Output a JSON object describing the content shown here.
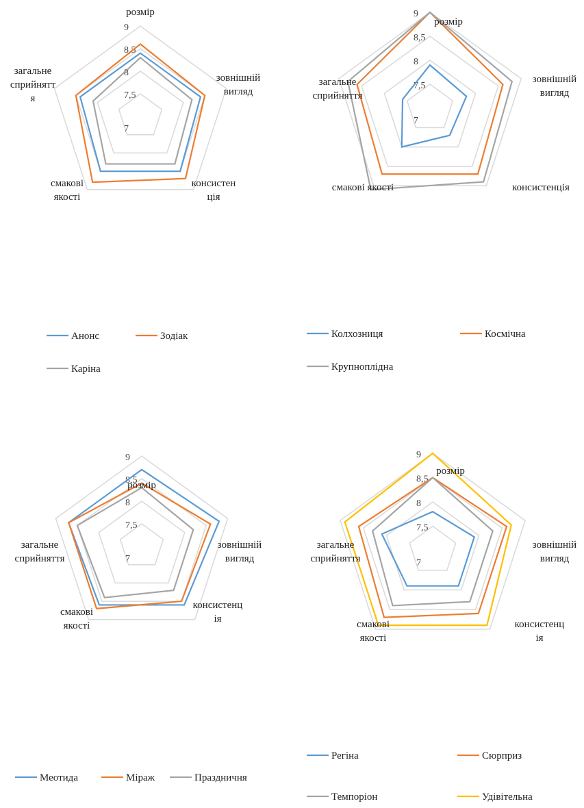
{
  "chart_data": [
    {
      "type": "radar",
      "axes": [
        "розмір",
        "зовнішній вигляд",
        "консистенція",
        "смакові якості",
        "загальне сприйняття"
      ],
      "axis_labels": [
        [
          "розмір"
        ],
        [
          "зовнішній",
          "вигляд"
        ],
        [
          "консистен",
          "ція"
        ],
        [
          "смакові",
          "якості"
        ],
        [
          "загальне",
          "сприйнятт",
          "я"
        ]
      ],
      "ticks": [
        "7",
        "7,5",
        "8",
        "8,5",
        "9"
      ],
      "range": [
        7,
        9
      ],
      "grid": true,
      "legend_position": "bottom",
      "series": [
        {
          "name": "Анонс",
          "color": "#5b9bd5",
          "values": [
            8.4,
            8.4,
            8.5,
            8.5,
            8.4
          ]
        },
        {
          "name": "Зодіак",
          "color": "#ed7d31",
          "values": [
            8.6,
            8.5,
            8.7,
            8.8,
            8.5
          ]
        },
        {
          "name": "Каріна",
          "color": "#a5a5a5",
          "values": [
            8.3,
            8.2,
            8.3,
            8.3,
            8.1
          ]
        }
      ]
    },
    {
      "type": "radar",
      "axes": [
        "розмір",
        "зовнішній вигляд",
        "консистенція",
        "смакові якості",
        "загальне сприйняття"
      ],
      "axis_labels": [
        [
          "розмір"
        ],
        [
          "зовнішній",
          "вигляд"
        ],
        [
          "консистенція"
        ],
        [
          "смакові якості"
        ],
        [
          "загальне",
          "сприйняття"
        ]
      ],
      "ticks": [
        "7",
        "7,5",
        "8",
        "8,5",
        "9"
      ],
      "range": [
        7,
        9
      ],
      "grid": true,
      "legend_position": "bottom",
      "series": [
        {
          "name": "Колхозниця",
          "color": "#5b9bd5",
          "values": [
            7.9,
            7.8,
            7.7,
            8.0,
            7.6
          ]
        },
        {
          "name": "Космічна",
          "color": "#ed7d31",
          "values": [
            9.0,
            8.6,
            8.7,
            8.7,
            8.6
          ]
        },
        {
          "name": "Крупноплідна",
          "color": "#a5a5a5",
          "values": [
            9.0,
            8.8,
            8.9,
            9.1,
            8.8
          ]
        }
      ]
    },
    {
      "type": "radar",
      "axes": [
        "розмір",
        "зовнішній вигляд",
        "консистенція",
        "смакові якості",
        "загальне сприйняття"
      ],
      "axis_labels": [
        [
          "розмір"
        ],
        [
          "зовнішній",
          "вигляд"
        ],
        [
          "консистенц",
          "ія"
        ],
        [
          "смакові",
          "якості"
        ],
        [
          "загальне",
          "сприйняття"
        ]
      ],
      "ticks": [
        "7",
        "7,5",
        "8",
        "8,5",
        "9"
      ],
      "range": [
        7,
        9
      ],
      "grid": true,
      "legend_position": "bottom",
      "series": [
        {
          "name": "Меотида",
          "color": "#5b9bd5",
          "values": [
            8.7,
            8.8,
            8.6,
            8.6,
            8.7
          ]
        },
        {
          "name": "Міраж",
          "color": "#ed7d31",
          "values": [
            8.4,
            8.6,
            8.5,
            8.7,
            8.7
          ]
        },
        {
          "name": "Праздничня",
          "color": "#a5a5a5",
          "values": [
            8.3,
            8.2,
            8.2,
            8.4,
            8.5
          ]
        }
      ]
    },
    {
      "type": "radar",
      "axes": [
        "розмір",
        "зовнішній вигляд",
        "консистенція",
        "смакові якості",
        "загальне сприйняття"
      ],
      "axis_labels": [
        [
          "розмір"
        ],
        [
          "зовнішній",
          "вигляд"
        ],
        [
          "консистенц",
          "ія"
        ],
        [
          "смакові",
          "якості"
        ],
        [
          "загальне",
          "сприйняття"
        ]
      ],
      "ticks": [
        "7",
        "7,5",
        "8",
        "8,5",
        "9"
      ],
      "range": [
        7,
        9
      ],
      "grid": true,
      "legend_position": "bottom",
      "series": [
        {
          "name": "Регіна",
          "color": "#5b9bd5",
          "values": [
            7.8,
            7.9,
            7.9,
            7.9,
            8.1
          ]
        },
        {
          "name": "Сюрприз",
          "color": "#ed7d31",
          "values": [
            8.5,
            8.6,
            8.6,
            8.7,
            8.6
          ]
        },
        {
          "name": "Темпоріон",
          "color": "#a5a5a5",
          "values": [
            8.5,
            8.3,
            8.3,
            8.4,
            8.3
          ]
        },
        {
          "name": "Удівітельна",
          "color": "#ffc000",
          "values": [
            9.0,
            8.7,
            8.9,
            8.9,
            8.9
          ]
        }
      ]
    }
  ]
}
